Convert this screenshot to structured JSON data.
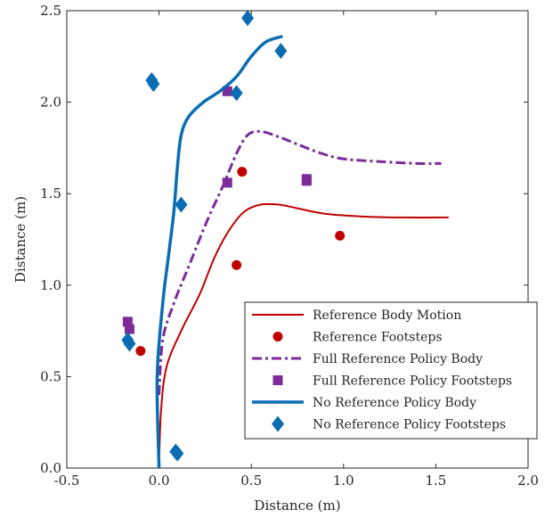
{
  "chart_data": {
    "type": "line",
    "title": "",
    "xlabel": "Distance (m)",
    "ylabel": "Distance (m)",
    "xlim": [
      -0.5,
      2.0
    ],
    "ylim": [
      0.0,
      2.5
    ],
    "xticks": [
      -0.5,
      0.0,
      0.5,
      1.0,
      1.5,
      2.0
    ],
    "xtick_labels": [
      "-0.5",
      "0.0",
      "0.5",
      "1.0",
      "1.5",
      "2.0"
    ],
    "yticks": [
      0.0,
      0.5,
      1.0,
      1.5,
      2.0,
      2.5
    ],
    "ytick_labels": [
      "0.0",
      "0.5",
      "1.0",
      "1.5",
      "2.0",
      "2.5"
    ],
    "grid": false,
    "legend_position": "bottom-right",
    "series": [
      {
        "name": "Reference Body Motion",
        "kind": "line",
        "style": "solid",
        "color": "#c00000",
        "points": [
          [
            0.0,
            0.0
          ],
          [
            0.01,
            0.3
          ],
          [
            0.04,
            0.55
          ],
          [
            0.12,
            0.75
          ],
          [
            0.22,
            0.95
          ],
          [
            0.3,
            1.15
          ],
          [
            0.38,
            1.3
          ],
          [
            0.46,
            1.4
          ],
          [
            0.55,
            1.44
          ],
          [
            0.65,
            1.44
          ],
          [
            0.75,
            1.42
          ],
          [
            0.9,
            1.39
          ],
          [
            1.1,
            1.375
          ],
          [
            1.3,
            1.37
          ],
          [
            1.57,
            1.37
          ]
        ]
      },
      {
        "name": "Reference Footsteps",
        "kind": "scatter",
        "marker": "circle",
        "color": "#c00000",
        "points": [
          [
            -0.1,
            0.64
          ],
          [
            0.42,
            1.11
          ],
          [
            0.45,
            1.62
          ],
          [
            0.98,
            1.27
          ]
        ]
      },
      {
        "name": "Full Reference Policy Body",
        "kind": "line",
        "style": "dashdot",
        "color": "#7b2b9a",
        "points": [
          [
            0.0,
            0.4
          ],
          [
            0.02,
            0.7
          ],
          [
            0.08,
            0.9
          ],
          [
            0.16,
            1.1
          ],
          [
            0.26,
            1.35
          ],
          [
            0.35,
            1.55
          ],
          [
            0.42,
            1.72
          ],
          [
            0.48,
            1.82
          ],
          [
            0.55,
            1.84
          ],
          [
            0.65,
            1.81
          ],
          [
            0.75,
            1.77
          ],
          [
            0.88,
            1.72
          ],
          [
            1.0,
            1.69
          ],
          [
            1.2,
            1.675
          ],
          [
            1.4,
            1.665
          ],
          [
            1.53,
            1.665
          ]
        ]
      },
      {
        "name": "Full Reference Policy Footsteps",
        "kind": "scatter",
        "marker": "square",
        "color": "#7b2b9a",
        "points": [
          [
            -0.17,
            0.8
          ],
          [
            -0.16,
            0.76
          ],
          [
            0.37,
            1.56
          ],
          [
            0.37,
            2.06
          ],
          [
            0.8,
            1.58
          ],
          [
            0.8,
            1.57
          ]
        ]
      },
      {
        "name": "No Reference Policy Body",
        "kind": "line",
        "style": "solid",
        "color": "#0a6db3",
        "points": [
          [
            0.0,
            0.0
          ],
          [
            -0.01,
            0.5
          ],
          [
            0.02,
            0.9
          ],
          [
            0.05,
            1.15
          ],
          [
            0.08,
            1.4
          ],
          [
            0.1,
            1.65
          ],
          [
            0.12,
            1.82
          ],
          [
            0.16,
            1.92
          ],
          [
            0.24,
            2.0
          ],
          [
            0.33,
            2.06
          ],
          [
            0.42,
            2.14
          ],
          [
            0.5,
            2.25
          ],
          [
            0.58,
            2.33
          ],
          [
            0.67,
            2.36
          ]
        ]
      },
      {
        "name": "No Reference Policy Footsteps",
        "kind": "scatter",
        "marker": "diamond",
        "color": "#0a6db3",
        "points": [
          [
            -0.17,
            0.7
          ],
          [
            -0.16,
            0.68
          ],
          [
            0.09,
            0.09
          ],
          [
            0.1,
            0.08
          ],
          [
            0.12,
            1.44
          ],
          [
            -0.04,
            2.12
          ],
          [
            -0.03,
            2.1
          ],
          [
            0.42,
            2.05
          ],
          [
            0.48,
            2.46
          ],
          [
            0.66,
            2.28
          ]
        ]
      }
    ]
  }
}
